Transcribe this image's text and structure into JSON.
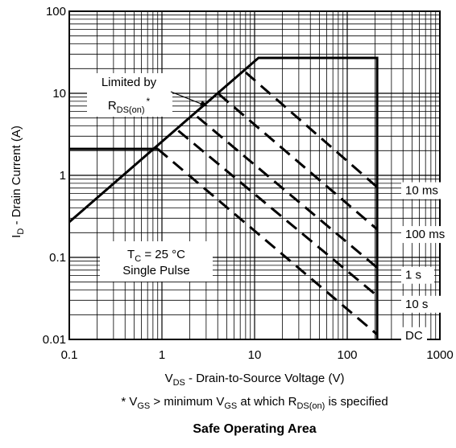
{
  "chart_data": {
    "type": "line",
    "title": "Safe Operating Area",
    "note": {
      "pre": "* V",
      "sub1": "GS",
      "mid": " > minimum V",
      "sub2": "GS",
      "mid2": " at which R",
      "sub3": "DS(on)",
      "post": " is specified"
    },
    "xlabel": {
      "main": "V",
      "sub": "DS",
      "rest": " - Drain-to-Source Voltage (V)"
    },
    "ylabel": {
      "main": "I",
      "sub": "D",
      "rest": " - Drain Current (A)"
    },
    "x_scale": "log",
    "y_scale": "log",
    "xlim": [
      0.1,
      1000
    ],
    "ylim": [
      0.01,
      100
    ],
    "grid": true,
    "x_ticks": [
      {
        "value": 0.1,
        "label": "0.1"
      },
      {
        "value": 1,
        "label": "1"
      },
      {
        "value": 10,
        "label": "10"
      },
      {
        "value": 100,
        "label": "100"
      },
      {
        "value": 1000,
        "label": "1000"
      }
    ],
    "y_ticks": [
      {
        "value": 0.01,
        "label": "0.01"
      },
      {
        "value": 0.1,
        "label": "0.1"
      },
      {
        "value": 1,
        "label": "1"
      },
      {
        "value": 10,
        "label": "10"
      },
      {
        "value": 100,
        "label": "100"
      }
    ],
    "boundary": {
      "style": "solid",
      "points": [
        [
          0.1,
          0.27
        ],
        [
          11,
          27
        ],
        [
          210,
          27
        ],
        [
          210,
          0.01
        ]
      ]
    },
    "boundary_dc_current": {
      "style": "solid",
      "points": [
        [
          0.1,
          2.1
        ],
        [
          0.9,
          2.1
        ]
      ]
    },
    "series": [
      {
        "name": "10 ms",
        "style": "dashed",
        "x": [
          8,
          210
        ],
        "y": [
          18,
          0.72
        ]
      },
      {
        "name": "100 ms",
        "style": "dashed",
        "x": [
          4.1,
          210
        ],
        "y": [
          9.8,
          0.22
        ]
      },
      {
        "name": "1 s",
        "style": "dashed",
        "x": [
          2.4,
          210
        ],
        "y": [
          5.2,
          0.075
        ]
      },
      {
        "name": "10 s",
        "style": "dashed",
        "x": [
          1.5,
          210
        ],
        "y": [
          3.5,
          0.034
        ]
      },
      {
        "name": "DC",
        "style": "dashed",
        "x": [
          0.9,
          210
        ],
        "y": [
          2.1,
          0.0115
        ]
      }
    ],
    "annotations": {
      "limited_line1": "Limited by",
      "limited_main": "R",
      "limited_sub": "DS(on)",
      "limited_post": "*",
      "tc_main": "T",
      "tc_sub": "C",
      "tc_rest": " = 25 °C",
      "pulse": "Single Pulse"
    }
  }
}
